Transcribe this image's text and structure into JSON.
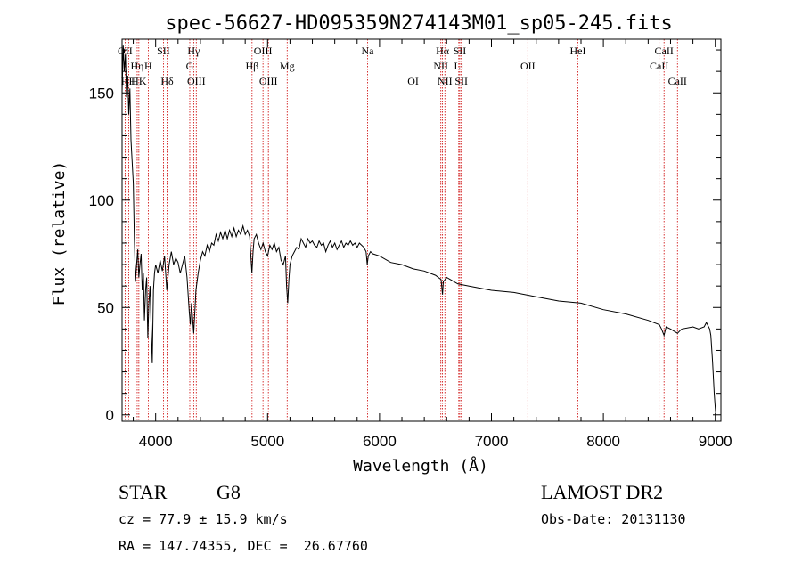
{
  "chart_data": {
    "type": "line",
    "title": "spec-56627-HD095359N274143M01_sp05-245.fits",
    "xlabel": "Wavelength (Å)",
    "ylabel": "Flux (relative)",
    "xlim": [
      3700,
      9050
    ],
    "ylim": [
      -3,
      175
    ],
    "x_ticks": [
      4000,
      5000,
      6000,
      7000,
      8000,
      9000
    ],
    "y_ticks": [
      0,
      50,
      100,
      150
    ],
    "grid": false,
    "series": [
      {
        "points": [
          [
            3700,
            150
          ],
          [
            3710,
            172
          ],
          [
            3720,
            160
          ],
          [
            3730,
            168
          ],
          [
            3740,
            148
          ],
          [
            3750,
            158
          ],
          [
            3760,
            140
          ],
          [
            3770,
            152
          ],
          [
            3780,
            128
          ],
          [
            3790,
            118
          ],
          [
            3800,
            108
          ],
          [
            3810,
            82
          ],
          [
            3820,
            62
          ],
          [
            3830,
            70
          ],
          [
            3840,
            77
          ],
          [
            3850,
            64
          ],
          [
            3860,
            70
          ],
          [
            3870,
            75
          ],
          [
            3880,
            58
          ],
          [
            3890,
            66
          ],
          [
            3900,
            44
          ],
          [
            3910,
            58
          ],
          [
            3920,
            64
          ],
          [
            3930,
            36
          ],
          [
            3940,
            52
          ],
          [
            3950,
            60
          ],
          [
            3960,
            40
          ],
          [
            3970,
            24
          ],
          [
            3980,
            58
          ],
          [
            3990,
            66
          ],
          [
            4000,
            70
          ],
          [
            4020,
            66
          ],
          [
            4040,
            72
          ],
          [
            4060,
            67
          ],
          [
            4080,
            74
          ],
          [
            4100,
            58
          ],
          [
            4120,
            70
          ],
          [
            4140,
            76
          ],
          [
            4160,
            70
          ],
          [
            4180,
            73
          ],
          [
            4200,
            71
          ],
          [
            4220,
            66
          ],
          [
            4240,
            70
          ],
          [
            4260,
            74
          ],
          [
            4280,
            64
          ],
          [
            4300,
            48
          ],
          [
            4310,
            42
          ],
          [
            4320,
            52
          ],
          [
            4340,
            38
          ],
          [
            4360,
            58
          ],
          [
            4380,
            66
          ],
          [
            4400,
            72
          ],
          [
            4420,
            76
          ],
          [
            4440,
            74
          ],
          [
            4460,
            79
          ],
          [
            4480,
            76
          ],
          [
            4500,
            80
          ],
          [
            4520,
            79
          ],
          [
            4540,
            84
          ],
          [
            4560,
            81
          ],
          [
            4580,
            85
          ],
          [
            4600,
            82
          ],
          [
            4620,
            86
          ],
          [
            4640,
            82
          ],
          [
            4660,
            86
          ],
          [
            4680,
            83
          ],
          [
            4700,
            87
          ],
          [
            4720,
            83
          ],
          [
            4740,
            86
          ],
          [
            4760,
            84
          ],
          [
            4780,
            88
          ],
          [
            4800,
            84
          ],
          [
            4820,
            86
          ],
          [
            4840,
            83
          ],
          [
            4860,
            66
          ],
          [
            4870,
            76
          ],
          [
            4880,
            82
          ],
          [
            4900,
            84
          ],
          [
            4920,
            80
          ],
          [
            4940,
            77
          ],
          [
            4960,
            80
          ],
          [
            4980,
            76
          ],
          [
            5000,
            74
          ],
          [
            5020,
            79
          ],
          [
            5040,
            77
          ],
          [
            5060,
            80
          ],
          [
            5080,
            76
          ],
          [
            5100,
            78
          ],
          [
            5120,
            72
          ],
          [
            5140,
            70
          ],
          [
            5160,
            74
          ],
          [
            5170,
            60
          ],
          [
            5180,
            52
          ],
          [
            5190,
            63
          ],
          [
            5200,
            70
          ],
          [
            5220,
            74
          ],
          [
            5240,
            76
          ],
          [
            5260,
            78
          ],
          [
            5280,
            77
          ],
          [
            5300,
            82
          ],
          [
            5320,
            80
          ],
          [
            5340,
            78
          ],
          [
            5360,
            82
          ],
          [
            5380,
            80
          ],
          [
            5400,
            81
          ],
          [
            5420,
            79
          ],
          [
            5440,
            78
          ],
          [
            5460,
            81
          ],
          [
            5480,
            79
          ],
          [
            5500,
            80
          ],
          [
            5520,
            76
          ],
          [
            5540,
            79
          ],
          [
            5560,
            81
          ],
          [
            5580,
            78
          ],
          [
            5600,
            80
          ],
          [
            5620,
            77
          ],
          [
            5640,
            79
          ],
          [
            5660,
            81
          ],
          [
            5680,
            78
          ],
          [
            5700,
            80
          ],
          [
            5720,
            79
          ],
          [
            5740,
            81
          ],
          [
            5760,
            79
          ],
          [
            5780,
            80
          ],
          [
            5800,
            78
          ],
          [
            5820,
            80
          ],
          [
            5840,
            79
          ],
          [
            5860,
            78
          ],
          [
            5880,
            76
          ],
          [
            5890,
            70
          ],
          [
            5900,
            74
          ],
          [
            5920,
            76
          ],
          [
            5940,
            75
          ],
          [
            6000,
            74
          ],
          [
            6100,
            71
          ],
          [
            6200,
            70
          ],
          [
            6300,
            68
          ],
          [
            6400,
            67
          ],
          [
            6500,
            65
          ],
          [
            6550,
            63
          ],
          [
            6563,
            56
          ],
          [
            6570,
            62
          ],
          [
            6600,
            64
          ],
          [
            6700,
            61
          ],
          [
            6800,
            60
          ],
          [
            6900,
            59
          ],
          [
            7000,
            58
          ],
          [
            7200,
            57
          ],
          [
            7400,
            55
          ],
          [
            7600,
            53
          ],
          [
            7800,
            52
          ],
          [
            8000,
            49
          ],
          [
            8200,
            47
          ],
          [
            8400,
            44
          ],
          [
            8500,
            42
          ],
          [
            8520,
            40
          ],
          [
            8542,
            37
          ],
          [
            8560,
            41
          ],
          [
            8600,
            40
          ],
          [
            8662,
            38
          ],
          [
            8700,
            40
          ],
          [
            8800,
            41
          ],
          [
            8850,
            40
          ],
          [
            8900,
            41
          ],
          [
            8920,
            43
          ],
          [
            8950,
            40
          ],
          [
            8960,
            37
          ],
          [
            8975,
            25
          ],
          [
            8990,
            10
          ],
          [
            9000,
            3
          ],
          [
            9005,
            0
          ]
        ]
      }
    ],
    "lines": [
      {
        "label": "OII",
        "x": 3727,
        "row": 1
      },
      {
        "label": "Hη",
        "x": 3835,
        "row": 2
      },
      {
        "label": "HK",
        "x": 3850,
        "row": 3
      },
      {
        "label": "HH",
        "x": 3760,
        "row": 3
      },
      {
        "label": "H",
        "x": 3934,
        "row": 2
      },
      {
        "label": "SII",
        "x": 4070,
        "row": 1
      },
      {
        "label": "Hδ",
        "x": 4102,
        "row": 3
      },
      {
        "label": "Hγ",
        "x": 4340,
        "row": 1
      },
      {
        "label": "G",
        "x": 4305,
        "row": 2
      },
      {
        "label": "OIII",
        "x": 4363,
        "row": 3
      },
      {
        "label": "Hβ",
        "x": 4861,
        "row": 2
      },
      {
        "label": "OIII",
        "x": 4959,
        "row": 1
      },
      {
        "label": "OIII",
        "x": 5007,
        "row": 3
      },
      {
        "label": "Mg",
        "x": 5175,
        "row": 2
      },
      {
        "label": "Na",
        "x": 5893,
        "row": 1
      },
      {
        "label": "OI",
        "x": 6300,
        "row": 3
      },
      {
        "label": "Hα",
        "x": 6563,
        "row": 1
      },
      {
        "label": "SII",
        "x": 6717,
        "row": 1
      },
      {
        "label": "NII",
        "x": 6548,
        "row": 2
      },
      {
        "label": "Li",
        "x": 6708,
        "row": 2
      },
      {
        "label": "NII",
        "x": 6584,
        "row": 3
      },
      {
        "label": "SII",
        "x": 6731,
        "row": 3
      },
      {
        "label": "OII",
        "x": 7325,
        "row": 2
      },
      {
        "label": "HeI",
        "x": 7772,
        "row": 1
      },
      {
        "label": "CaII",
        "x": 8542,
        "row": 1
      },
      {
        "label": "CaII",
        "x": 8498,
        "row": 2
      },
      {
        "label": "CaII",
        "x": 8662,
        "row": 3
      }
    ],
    "colors": {
      "spectrum": "#000000",
      "line_marker": "#cc0000",
      "axes": "#000000"
    }
  },
  "info": {
    "object_class": "STAR",
    "subclass": "G8",
    "redshift_text": "cz = 77.9 ± 15.9 km/s",
    "coords_text": "RA = 147.74355, DEC =  26.67760",
    "survey": "LAMOST DR2",
    "obs_date": "Obs-Date: 20131130"
  }
}
